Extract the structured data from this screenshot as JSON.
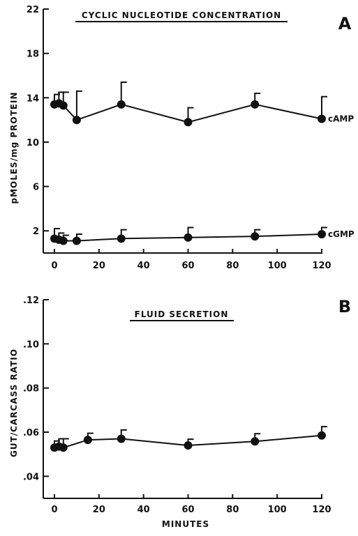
{
  "chart_data": [
    {
      "type": "line",
      "panel_label": "A",
      "title": "CYCLIC NUCLEOTIDE CONCENTRATION",
      "xlabel": "",
      "ylabel": "pMOLES/mg PROTEIN",
      "xlim": [
        0,
        120
      ],
      "ylim": [
        0,
        22
      ],
      "xticks": [
        "0",
        "20",
        "40",
        "60",
        "80",
        "100",
        "120"
      ],
      "yticks": [
        "2",
        "6",
        "10",
        "14",
        "18",
        "22"
      ],
      "grid": false,
      "series": [
        {
          "name": "cAMP",
          "x": [
            0,
            2,
            4,
            10,
            30,
            60,
            90,
            120
          ],
          "y": [
            13.4,
            13.5,
            13.3,
            12.0,
            13.4,
            11.8,
            13.4,
            12.1
          ],
          "error": [
            0.9,
            1.0,
            1.2,
            2.6,
            2.0,
            1.3,
            1.0,
            2.0
          ]
        },
        {
          "name": "cGMP",
          "x": [
            0,
            2,
            4,
            10,
            30,
            60,
            90,
            120
          ],
          "y": [
            1.3,
            1.2,
            1.1,
            1.1,
            1.3,
            1.4,
            1.5,
            1.7
          ],
          "error": [
            0.9,
            0.6,
            0.5,
            0.6,
            0.8,
            0.9,
            0.6,
            0.6
          ]
        }
      ]
    },
    {
      "type": "line",
      "panel_label": "B",
      "title": "FLUID SECRETION",
      "xlabel": "MINUTES",
      "ylabel": "GUT/CARCASS RATIO",
      "xlim": [
        0,
        120
      ],
      "ylim": [
        0.03,
        0.12
      ],
      "xticks": [
        "0",
        "20",
        "40",
        "60",
        "80",
        "100",
        "120"
      ],
      "yticks": [
        ".04",
        ".06",
        ".08",
        ".10",
        ".12"
      ],
      "grid": false,
      "series": [
        {
          "x": [
            0,
            2,
            4,
            15,
            30,
            60,
            90,
            120
          ],
          "y": [
            0.053,
            0.0535,
            0.053,
            0.0565,
            0.057,
            0.054,
            0.0558,
            0.0585
          ],
          "error": [
            0.003,
            0.0035,
            0.004,
            0.003,
            0.004,
            0.0028,
            0.0035,
            0.004
          ]
        }
      ]
    }
  ]
}
